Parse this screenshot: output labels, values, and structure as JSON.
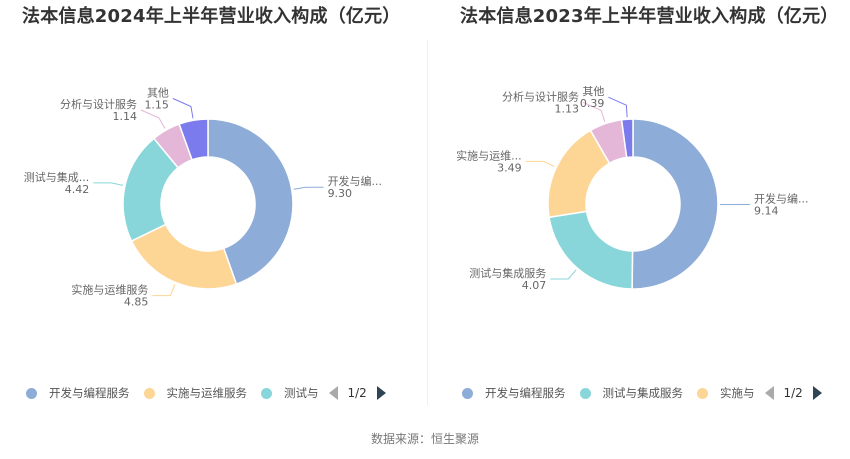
{
  "source_label": "数据来源：恒生聚源",
  "chart_data": [
    {
      "type": "pie",
      "variant": "donut",
      "title": "法本信息2024年上半年营业收入构成（亿元）",
      "unit": "亿元",
      "categories": [
        "开发与编程服务",
        "实施与运维服务",
        "测试与集成服务",
        "分析与设计服务",
        "其他"
      ],
      "values": [
        9.3,
        4.85,
        4.42,
        1.14,
        1.15
      ],
      "colors": [
        "#8eacd8",
        "#fdd595",
        "#88d6d9",
        "#e4b6d8",
        "#7b7bee"
      ],
      "display_labels": [
        "开发与编...",
        "实施与运维服务",
        "测试与集成...",
        "分析与设计服务",
        "其他"
      ],
      "legend": {
        "items": [
          "开发与编程服务",
          "实施与运维服务",
          "测试与"
        ],
        "page": "1/2",
        "position": "bottom"
      }
    },
    {
      "type": "pie",
      "variant": "donut",
      "title": "法本信息2023年上半年营业收入构成（亿元）",
      "unit": "亿元",
      "categories": [
        "开发与编程服务",
        "测试与集成服务",
        "实施与运维服务",
        "分析与设计服务",
        "其他"
      ],
      "values": [
        9.14,
        4.07,
        3.49,
        1.13,
        0.39
      ],
      "colors": [
        "#8eacd8",
        "#88d6d9",
        "#fdd595",
        "#e4b6d8",
        "#7b7bee"
      ],
      "display_labels": [
        "开发与编...",
        "测试与集成服务",
        "实施与运维...",
        "分析与设计服务",
        "其他"
      ],
      "legend": {
        "items": [
          "开发与编程服务",
          "测试与集成服务",
          "实施与"
        ],
        "page": "1/2",
        "position": "bottom"
      }
    }
  ]
}
